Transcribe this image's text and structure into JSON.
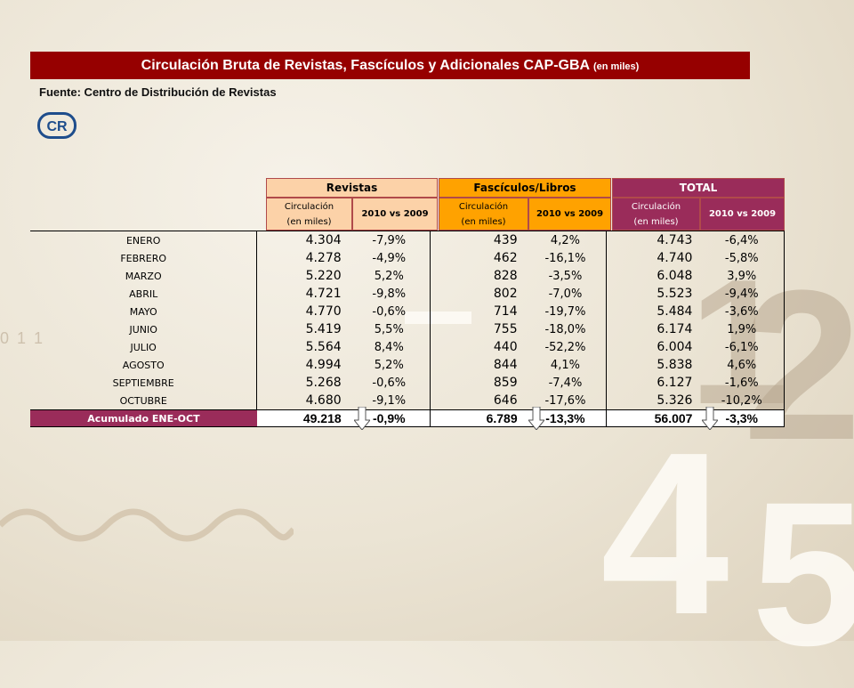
{
  "title": {
    "main": "Circulación Bruta de Revistas, Fascículos y Adicionales CAP-GBA",
    "suffix": "(en miles)"
  },
  "source": "Fuente: Centro de Distribución de Revistas",
  "logo_text": "CR",
  "background_numbers": {
    "one": "1",
    "two": "2",
    "four": "4",
    "five": "5",
    "left": "0 1 1"
  },
  "headers": {
    "groups": [
      "Revistas",
      "Fascículos/Libros",
      "TOTAL"
    ],
    "circulacion_line1": "Circulación",
    "circulacion_line2": "(en miles)",
    "comparison": "2010 vs 2009"
  },
  "rows": [
    {
      "month": "ENERO",
      "rev": "4.304",
      "rev_pct": "-7,9%",
      "fas": "439",
      "fas_pct": "4,2%",
      "tot": "4.743",
      "tot_pct": "-6,4%"
    },
    {
      "month": "FEBRERO",
      "rev": "4.278",
      "rev_pct": "-4,9%",
      "fas": "462",
      "fas_pct": "-16,1%",
      "tot": "4.740",
      "tot_pct": "-5,8%"
    },
    {
      "month": "MARZO",
      "rev": "5.220",
      "rev_pct": "5,2%",
      "fas": "828",
      "fas_pct": "-3,5%",
      "tot": "6.048",
      "tot_pct": "3,9%"
    },
    {
      "month": "ABRIL",
      "rev": "4.721",
      "rev_pct": "-9,8%",
      "fas": "802",
      "fas_pct": "-7,0%",
      "tot": "5.523",
      "tot_pct": "-9,4%"
    },
    {
      "month": "MAYO",
      "rev": "4.770",
      "rev_pct": "-0,6%",
      "fas": "714",
      "fas_pct": "-19,7%",
      "tot": "5.484",
      "tot_pct": "-3,6%"
    },
    {
      "month": "JUNIO",
      "rev": "5.419",
      "rev_pct": "5,5%",
      "fas": "755",
      "fas_pct": "-18,0%",
      "tot": "6.174",
      "tot_pct": "1,9%"
    },
    {
      "month": "JULIO",
      "rev": "5.564",
      "rev_pct": "8,4%",
      "fas": "440",
      "fas_pct": "-52,2%",
      "tot": "6.004",
      "tot_pct": "-6,1%"
    },
    {
      "month": "AGOSTO",
      "rev": "4.994",
      "rev_pct": "5,2%",
      "fas": "844",
      "fas_pct": "4,1%",
      "tot": "5.838",
      "tot_pct": "4,6%"
    },
    {
      "month": "SEPTIEMBRE",
      "rev": "5.268",
      "rev_pct": "-0,6%",
      "fas": "859",
      "fas_pct": "-7,4%",
      "tot": "6.127",
      "tot_pct": "-1,6%"
    },
    {
      "month": "OCTUBRE",
      "rev": "4.680",
      "rev_pct": "-9,1%",
      "fas": "646",
      "fas_pct": "-17,6%",
      "tot": "5.326",
      "tot_pct": "-10,2%"
    }
  ],
  "total_row": {
    "label": "Acumulado ENE-OCT",
    "rev": "49.218",
    "rev_pct": "-0,9%",
    "fas": "6.789",
    "fas_pct": "-13,3%",
    "tot": "56.007",
    "tot_pct": "-3,3%"
  },
  "colors": {
    "title_bg": "#960000",
    "revistas": "#fcd2a8",
    "fasciculos": "#ffa200",
    "total": "#9a2c5a"
  },
  "icons": {
    "down_arrow": "down-arrow-icon"
  }
}
